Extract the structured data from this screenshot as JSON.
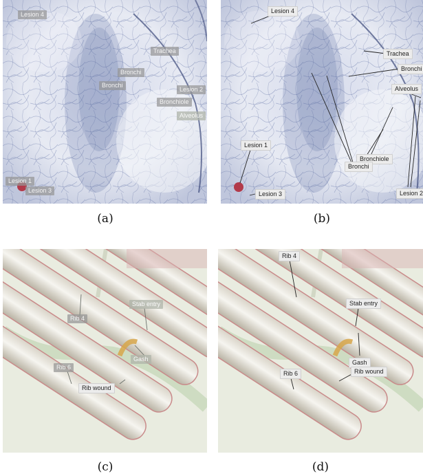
{
  "figure": {
    "panels": [
      {
        "id": "a",
        "caption": "(a)",
        "labels": [
          "Lesion 4",
          "Trachea",
          "Bronchi",
          "Bronchi",
          "Lesion 2",
          "Bronchiole",
          "Alveolus",
          "Lesion 1",
          "Lesion 3"
        ]
      },
      {
        "id": "b",
        "caption": "(b)",
        "labels": [
          "Lesion 4",
          "Trachea",
          "Bronchi",
          "Alveolus",
          "Lesion 1",
          "Bronchiole",
          "Bronchi",
          "Lesion 3",
          "Lesion 2"
        ]
      },
      {
        "id": "c",
        "caption": "(c)",
        "labels": [
          "Stab entry",
          "Rib 4",
          "Gash",
          "Rib 6",
          "Rib wound"
        ]
      },
      {
        "id": "d",
        "caption": "(d)",
        "labels": [
          "Rib 4",
          "Stab entry",
          "Gash",
          "Rib 6",
          "Rib wound"
        ]
      }
    ]
  },
  "colors": {
    "lung_background": "#eef0f6",
    "vessel": "#5668a0",
    "lesion": "#b23a4a",
    "rib_background": "#e9ece0",
    "rib_bone": "#f1f0ea",
    "rib_edge": "#c98a8a",
    "tissue_green": "#9fbf8a"
  }
}
